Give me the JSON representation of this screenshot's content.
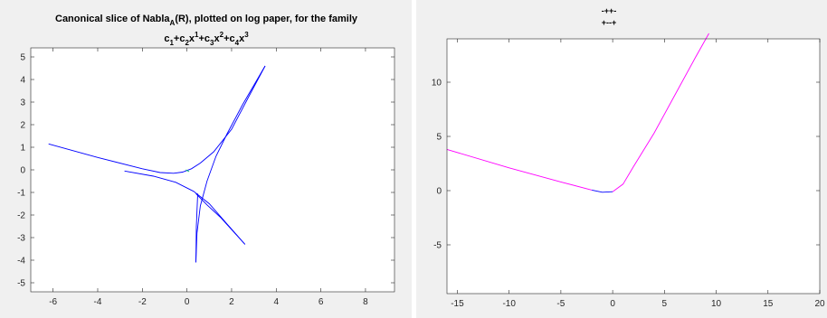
{
  "chart_data": [
    {
      "type": "line",
      "title_line1": "Canonical slice of Nabla",
      "title_sub_a": "A",
      "title_line1_rest": "(R), plotted on log paper, for the family",
      "title_line2": {
        "c1": "c",
        "c1s": "1",
        "p1": "+c",
        "c2s": "2",
        "x1": "x",
        "e1": "1",
        "p2": "+c",
        "c3s": "3",
        "x2": "x",
        "e2": "2",
        "p3": "+c",
        "c4s": "4",
        "x3": "x",
        "e3": "3"
      },
      "xlim": [
        -7,
        9.3
      ],
      "ylim": [
        -5.4,
        5.4
      ],
      "xticks": [
        -6,
        -4,
        -2,
        0,
        2,
        4,
        6,
        8
      ],
      "yticks": [
        5,
        4,
        3,
        2,
        1,
        0,
        -1,
        -2,
        -3,
        -4,
        -5
      ],
      "grid": false,
      "series": [
        {
          "color": "#0000ff",
          "points": [
            [
              -6.2,
              1.15
            ],
            [
              -4,
              0.55
            ],
            [
              -2,
              0.05
            ],
            [
              -1.2,
              -0.12
            ],
            [
              -0.6,
              -0.15
            ],
            [
              -0.2,
              -0.1
            ],
            [
              0.2,
              0.05
            ],
            [
              0.6,
              0.3
            ],
            [
              1.2,
              0.8
            ],
            [
              2,
              1.8
            ],
            [
              2.8,
              3.3
            ],
            [
              3.5,
              4.6
            ]
          ]
        },
        {
          "color": "#0000ff",
          "points": [
            [
              0.4,
              -4.1
            ],
            [
              0.45,
              -2.8
            ],
            [
              0.6,
              -1.6
            ],
            [
              0.9,
              -0.5
            ],
            [
              1.3,
              0.6
            ],
            [
              1.8,
              1.6
            ],
            [
              2.5,
              2.9
            ],
            [
              3.5,
              4.6
            ]
          ]
        },
        {
          "color": "#0000ff",
          "points": [
            [
              -2.8,
              -0.05
            ],
            [
              -1.5,
              -0.28
            ],
            [
              -0.5,
              -0.55
            ],
            [
              0.3,
              -0.95
            ],
            [
              1,
              -1.5
            ],
            [
              1.8,
              -2.4
            ],
            [
              2.6,
              -3.3
            ]
          ]
        },
        {
          "color": "#0000ff",
          "points": [
            [
              0.4,
              -1.05
            ],
            [
              0.9,
              -1.55
            ],
            [
              1.5,
              -2.1
            ],
            [
              2.6,
              -3.3
            ]
          ]
        },
        {
          "color": "#0000ff",
          "points": [
            [
              0.4,
              -4.1
            ],
            [
              0.42,
              -2.5
            ],
            [
              0.48,
              -1.05
            ]
          ]
        },
        {
          "color": "#00cc66",
          "points": [
            [
              -0.05,
              0.0
            ],
            [
              0.1,
              -0.08
            ]
          ]
        }
      ]
    },
    {
      "type": "line",
      "title_line1": "-++-",
      "title_line2": "+--+",
      "xlim": [
        -16,
        20
      ],
      "ylim": [
        -9.5,
        14
      ],
      "xticks": [
        -15,
        -10,
        -5,
        0,
        5,
        10,
        15,
        20
      ],
      "yticks": [
        10,
        5,
        0,
        -5
      ],
      "grid": false,
      "series": [
        {
          "color": "#ff00ff",
          "points": [
            [
              -16,
              3.8
            ],
            [
              -10,
              2.1
            ],
            [
              -5,
              0.8
            ],
            [
              -2,
              0.05
            ]
          ]
        },
        {
          "color": "#0000ff",
          "points": [
            [
              -2,
              0.05
            ],
            [
              -1,
              -0.15
            ],
            [
              0,
              -0.1
            ]
          ]
        },
        {
          "color": "#ff00ff",
          "points": [
            [
              0,
              -0.1
            ],
            [
              1,
              0.6
            ],
            [
              2,
              2.2
            ],
            [
              4,
              5.3
            ],
            [
              6,
              8.8
            ],
            [
              8,
              12.3
            ],
            [
              9.3,
              14.5
            ]
          ]
        }
      ]
    }
  ]
}
